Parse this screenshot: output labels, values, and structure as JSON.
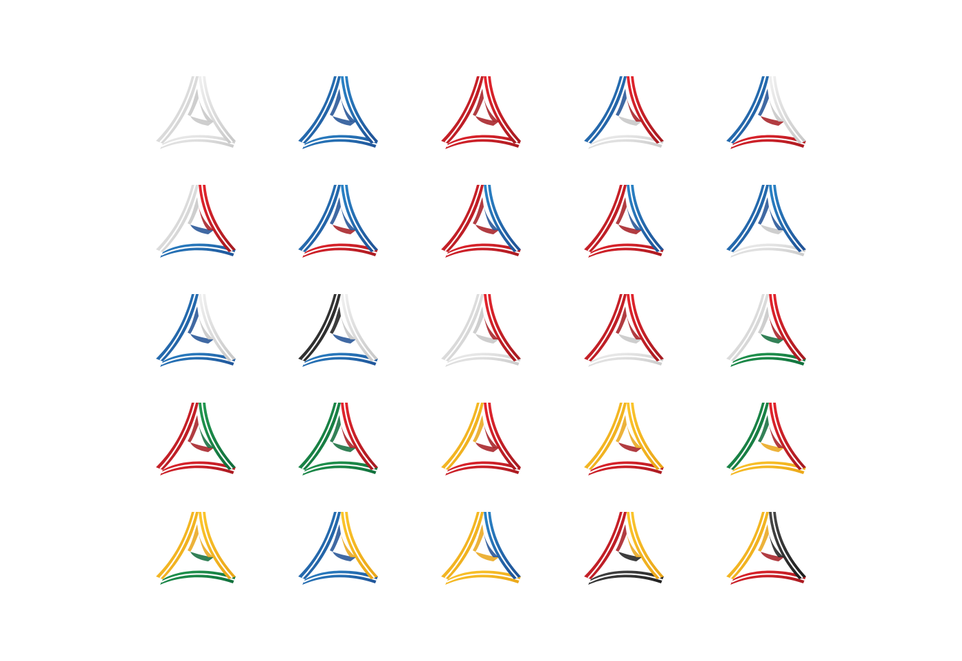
{
  "palette": {
    "silver": [
      "#f1f1f1",
      "#c6c6c6"
    ],
    "blue": [
      "#2b85c8",
      "#1f4f93"
    ],
    "red": [
      "#e6252e",
      "#a31a20"
    ],
    "black": [
      "#4a4a4a",
      "#1b1b1b"
    ],
    "green": [
      "#239a51",
      "#0f6b3a"
    ],
    "gold": [
      "#fcc72e",
      "#e9a417"
    ]
  },
  "icons": [
    {
      "name": "emblem-silver",
      "arms": [
        "silver",
        "silver",
        "silver"
      ]
    },
    {
      "name": "emblem-blue",
      "arms": [
        "blue",
        "blue",
        "blue"
      ]
    },
    {
      "name": "emblem-red",
      "arms": [
        "red",
        "red",
        "red"
      ]
    },
    {
      "name": "emblem-blue-red-silver",
      "arms": [
        "blue",
        "red",
        "silver"
      ]
    },
    {
      "name": "emblem-blue-silver-red",
      "arms": [
        "blue",
        "silver",
        "red"
      ]
    },
    {
      "name": "emblem-silver-red-blue",
      "arms": [
        "silver",
        "red",
        "blue"
      ]
    },
    {
      "name": "emblem-blue-blue-red",
      "arms": [
        "blue",
        "blue",
        "red"
      ]
    },
    {
      "name": "emblem-red-blue-red",
      "arms": [
        "red",
        "blue",
        "red"
      ]
    },
    {
      "name": "emblem-red-blue-red-2",
      "arms": [
        "red",
        "blue",
        "red"
      ]
    },
    {
      "name": "emblem-blue-blue-silver",
      "arms": [
        "blue",
        "blue",
        "silver"
      ]
    },
    {
      "name": "emblem-blue-silver-blue",
      "arms": [
        "blue",
        "silver",
        "blue"
      ]
    },
    {
      "name": "emblem-black-silver-blue",
      "arms": [
        "black",
        "silver",
        "blue"
      ]
    },
    {
      "name": "emblem-silver-red-silver",
      "arms": [
        "silver",
        "red",
        "silver"
      ]
    },
    {
      "name": "emblem-red-red-silver",
      "arms": [
        "red",
        "red",
        "silver"
      ]
    },
    {
      "name": "emblem-silver-red-green",
      "arms": [
        "silver",
        "red",
        "green"
      ]
    },
    {
      "name": "emblem-red-green-red",
      "arms": [
        "red",
        "green",
        "red"
      ]
    },
    {
      "name": "emblem-green-red-green",
      "arms": [
        "green",
        "red",
        "green"
      ]
    },
    {
      "name": "emblem-gold-red-red",
      "arms": [
        "gold",
        "red",
        "red"
      ]
    },
    {
      "name": "emblem-gold-gold-red",
      "arms": [
        "gold",
        "gold",
        "red"
      ]
    },
    {
      "name": "emblem-green-red-gold",
      "arms": [
        "green",
        "red",
        "gold"
      ]
    },
    {
      "name": "emblem-gold-gold-green",
      "arms": [
        "gold",
        "gold",
        "green"
      ]
    },
    {
      "name": "emblem-blue-gold-blue",
      "arms": [
        "blue",
        "gold",
        "blue"
      ]
    },
    {
      "name": "emblem-gold-blue-gold",
      "arms": [
        "gold",
        "blue",
        "gold"
      ]
    },
    {
      "name": "emblem-red-gold-black",
      "arms": [
        "red",
        "gold",
        "black"
      ]
    },
    {
      "name": "emblem-gold-black-red",
      "arms": [
        "gold",
        "black",
        "red"
      ]
    }
  ]
}
